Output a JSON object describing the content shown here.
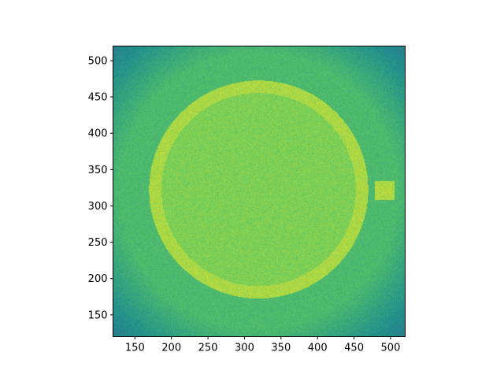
{
  "chart_data": {
    "type": "heatmap",
    "title": "",
    "xlabel": "",
    "ylabel": "",
    "xlim": [
      120,
      520
    ],
    "ylim": [
      120,
      520
    ],
    "x_ticks": [
      "150",
      "200",
      "250",
      "300",
      "350",
      "400",
      "450",
      "500"
    ],
    "y_ticks": [
      "150",
      "200",
      "250",
      "300",
      "350",
      "400",
      "450",
      "500"
    ],
    "colormap": "viridis",
    "grid": false,
    "features": {
      "background_level": 0.68,
      "corner_level": 0.45,
      "disk": {
        "center": [
          320,
          322
        ],
        "outer_radius": 150,
        "ring_width": 17,
        "ring_level": 0.87,
        "interior_level": 0.8
      },
      "square": {
        "x": [
          479,
          506
        ],
        "y": [
          308,
          334
        ],
        "level": 0.88
      }
    },
    "colors": {
      "low": "#2a8f8b",
      "mid": "#62c25e",
      "high": "#a8db34"
    }
  }
}
